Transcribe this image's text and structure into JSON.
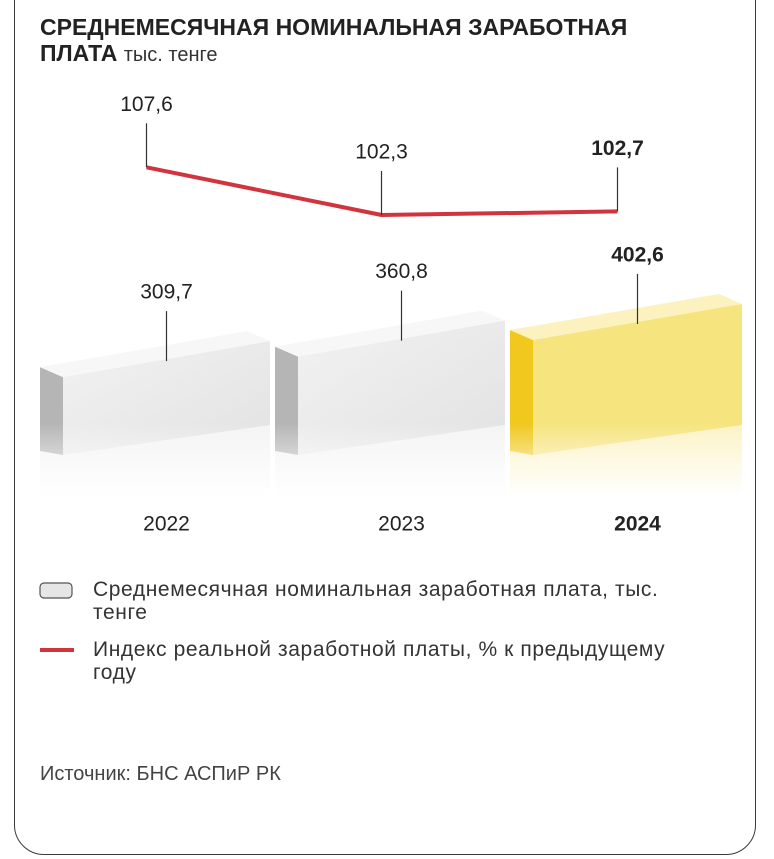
{
  "chart_data": {
    "type": "bar-line",
    "title": "СРЕДНЕМЕСЯЧНАЯ НОМИНАЛЬНАЯ ЗАРАБОТНАЯ ПЛАТА",
    "subtitle": "тыс. тенге",
    "categories": [
      "2022",
      "2023",
      "2024"
    ],
    "series": [
      {
        "name": "Среднемесячная номинальная заработная плата, тыс. тенге",
        "type": "bar",
        "color": "#e6e6e6",
        "values": [
          309.7,
          360.8,
          402.6
        ],
        "value_labels": [
          "309,7",
          "360,8",
          "402,6"
        ]
      },
      {
        "name": "Индекс реальной заработной платы, % к предыдущему году",
        "type": "line",
        "color": "#d1343d",
        "values": [
          107.6,
          102.3,
          102.7
        ],
        "value_labels": [
          "107,6",
          "102,3",
          "102,7"
        ]
      }
    ],
    "highlight": {
      "category_index": 2,
      "color": "#f6e47e"
    },
    "source": "Источник: БНС АСПиР РК"
  }
}
